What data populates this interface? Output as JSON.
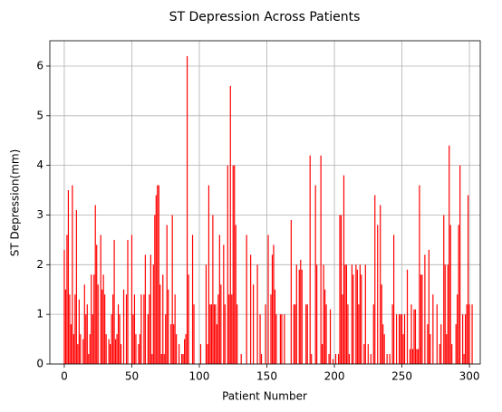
{
  "chart_data": {
    "type": "bar",
    "title": "ST Depression Across Patients",
    "x_label": "Patient Number",
    "y_label": "ST Depression(mm)",
    "color": "#ff0000",
    "grid": true,
    "xlim": [
      -10.7,
      308
    ],
    "ylim": [
      0,
      6.51
    ],
    "xticks": [
      0,
      50,
      100,
      150,
      200,
      250,
      300
    ],
    "yticks": [
      0,
      1,
      2,
      3,
      4,
      5,
      6
    ],
    "values": [
      2.3,
      1.5,
      2.6,
      3.5,
      1.4,
      0.8,
      3.6,
      0.6,
      1.4,
      3.1,
      0.4,
      1.3,
      0.6,
      0,
      0.5,
      1.6,
      1,
      1.2,
      0.2,
      0.6,
      1.8,
      1,
      1.8,
      3.2,
      2.4,
      1.6,
      0,
      2.6,
      1.5,
      1.8,
      1.4,
      0.6,
      0,
      0.5,
      0.4,
      1,
      1.4,
      2.5,
      0.5,
      0.6,
      1.2,
      1,
      0.4,
      0,
      1.5,
      0,
      1.4,
      2.5,
      0,
      0,
      2.6,
      1,
      1.4,
      0.6,
      0,
      0.4,
      0.6,
      1.4,
      0,
      1.4,
      2.2,
      0,
      1,
      1.4,
      2.2,
      0.2,
      2,
      3,
      3.4,
      3.6,
      3.6,
      1.6,
      0.2,
      1.8,
      0.2,
      1,
      2.8,
      1.5,
      0,
      0.8,
      3,
      0.8,
      1.4,
      0.6,
      0,
      0.4,
      0,
      0.2,
      0.2,
      0.5,
      0.6,
      6.2,
      1.8,
      0,
      0,
      2.6,
      1.2,
      0,
      0,
      0,
      0,
      0.4,
      0,
      0,
      0,
      2,
      0.4,
      3.6,
      1.2,
      1.2,
      3,
      1.2,
      1.2,
      0.8,
      1.4,
      2.6,
      1.6,
      0,
      2.4,
      1.2,
      0,
      4,
      1.4,
      5.6,
      1.4,
      4,
      4,
      2.8,
      1.2,
      0,
      0,
      0.2,
      0,
      0,
      0,
      2.6,
      0,
      0,
      2.2,
      0,
      1.6,
      0,
      0,
      2,
      0,
      1,
      0.2,
      0,
      0,
      1.2,
      0,
      2.6,
      0,
      1.4,
      2.2,
      2.4,
      1.5,
      1,
      0,
      0,
      1,
      1,
      0,
      1,
      0,
      0,
      0,
      0,
      2.9,
      0,
      1.2,
      1.2,
      2,
      0,
      1.9,
      2.1,
      1.9,
      0,
      0,
      1.2,
      1.2,
      0,
      4.2,
      0.2,
      0,
      0,
      3.6,
      2,
      0,
      0,
      4.2,
      0.4,
      2,
      1.5,
      1.2,
      0,
      0.2,
      1.1,
      0,
      0.1,
      0,
      0.2,
      0,
      0.2,
      3,
      3,
      1.4,
      3.8,
      2,
      2,
      1.2,
      0.2,
      0,
      2,
      1.8,
      0,
      2,
      1.9,
      1.2,
      2,
      1.8,
      0,
      0.4,
      2,
      0,
      0.4,
      0,
      0.2,
      0,
      1.2,
      3.4,
      0,
      2.8,
      0,
      3.2,
      1.6,
      0.8,
      0.6,
      0,
      0.2,
      0,
      0.2,
      0,
      1.2,
      2.6,
      0,
      1,
      0,
      1,
      1,
      1,
      0.6,
      1,
      0,
      1.9,
      0,
      0.3,
      1.2,
      0.3,
      1.1,
      1.1,
      0.3,
      0.3,
      3.6,
      1.8,
      1.8,
      0,
      2.2,
      0,
      0.8,
      2.3,
      0.6,
      0,
      1.4,
      0,
      0,
      1.2,
      0,
      0.4,
      0.8,
      0,
      3,
      2,
      0.6,
      2,
      4.4,
      2.8,
      0.4,
      0,
      0,
      0.8,
      1.4,
      2.8,
      4,
      0,
      1,
      0.2,
      1,
      1.2,
      3.4,
      1.2,
      0,
      1.2
    ]
  }
}
